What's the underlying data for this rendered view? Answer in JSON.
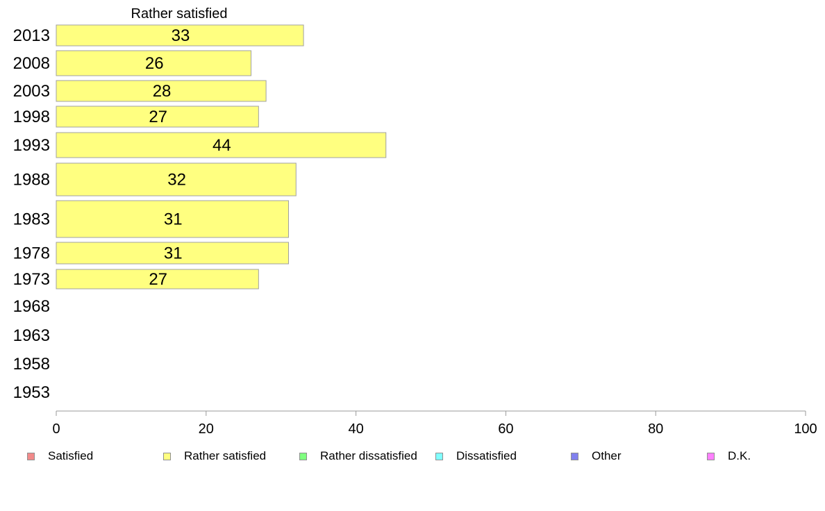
{
  "chart_data": {
    "type": "bar",
    "orientation": "horizontal",
    "stacked": true,
    "title": "Rather satisfied",
    "categories": [
      "2013",
      "2008",
      "2003",
      "1998",
      "1993",
      "1988",
      "1983",
      "1978",
      "1973",
      "1968",
      "1963",
      "1958",
      "1953"
    ],
    "series": [
      {
        "name": "Satisfied",
        "color": "#f28a8a",
        "values": [
          null,
          null,
          null,
          null,
          null,
          null,
          null,
          null,
          null,
          null,
          null,
          null,
          null
        ]
      },
      {
        "name": "Rather satisfied",
        "color": "#ffff80",
        "values": [
          33,
          26,
          28,
          27,
          44,
          32,
          31,
          31,
          27,
          null,
          null,
          null,
          null
        ]
      },
      {
        "name": "Rather dissatisfied",
        "color": "#80ff80",
        "values": [
          null,
          null,
          null,
          null,
          null,
          null,
          null,
          null,
          null,
          null,
          null,
          null,
          null
        ]
      },
      {
        "name": "Dissatisfied",
        "color": "#80ffff",
        "values": [
          null,
          null,
          null,
          null,
          null,
          null,
          null,
          null,
          null,
          null,
          null,
          null,
          null
        ]
      },
      {
        "name": "Other",
        "color": "#8080ee",
        "values": [
          null,
          null,
          null,
          null,
          null,
          null,
          null,
          null,
          null,
          null,
          null,
          null,
          null
        ]
      },
      {
        "name": "D.K.",
        "color": "#ff80ff",
        "values": [
          null,
          null,
          null,
          null,
          null,
          null,
          null,
          null,
          null,
          null,
          null,
          null,
          null
        ]
      }
    ],
    "data_labels": [
      "33",
      "26",
      "28",
      "27",
      "44",
      "32",
      "31",
      "31",
      "27"
    ],
    "xlim": [
      0,
      100
    ],
    "xticks": [
      "0",
      "20",
      "40",
      "60",
      "80",
      "100"
    ],
    "grid": false,
    "legend_position": "bottom"
  }
}
